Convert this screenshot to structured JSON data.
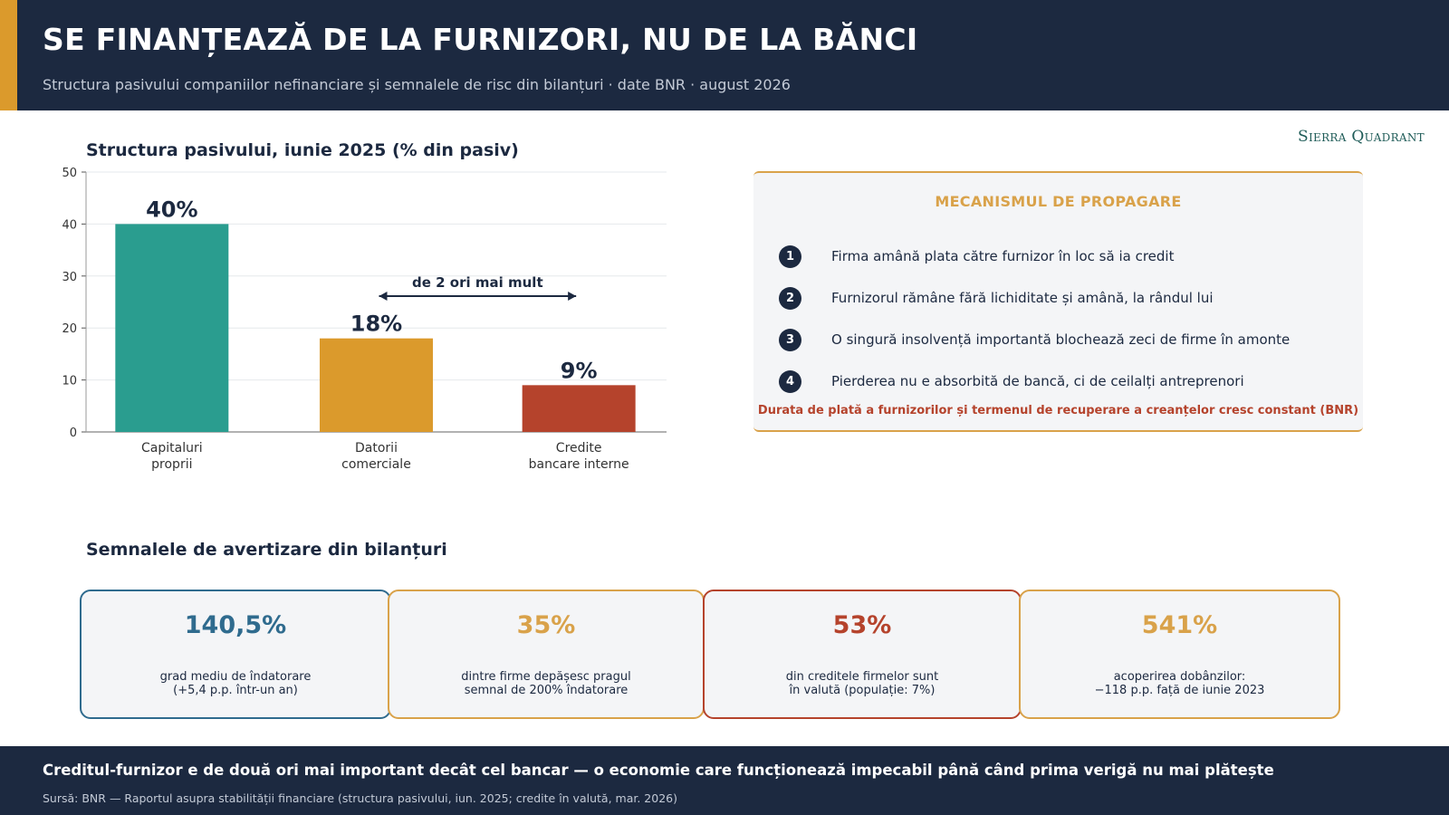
{
  "header": {
    "title": "SE FINANȚEAZĂ DE LA FURNIZORI, NU DE LA BĂNCI",
    "subtitle": "Structura pasivului companiilor nefinanciare și semnalele de risc din bilanțuri · date BNR · august 2026"
  },
  "brand": "Sierra Quadrant",
  "chart_section": {
    "title": "Structura pasivului, iunie 2025 (% din pasiv)"
  },
  "chart_data": {
    "type": "bar",
    "title": "Structura pasivului, iunie 2025 (% din pasiv)",
    "categories": [
      [
        "Capitaluri",
        "proprii"
      ],
      [
        "Datorii",
        "comerciale"
      ],
      [
        "Credite",
        "bancare interne"
      ]
    ],
    "values": [
      40,
      18,
      9
    ],
    "data_labels": [
      "40%",
      "18%",
      "9%"
    ],
    "colors": [
      "#2a9d8f",
      "#db9a2c",
      "#b5432c"
    ],
    "ylim": [
      0,
      50
    ],
    "yticks": [
      0,
      10,
      20,
      30,
      40,
      50
    ],
    "grid": true,
    "annotation": {
      "text": "de 2 ori mai mult",
      "from_category": 1,
      "to_category": 2
    }
  },
  "mechanism": {
    "title": "MECANISMUL DE PROPAGARE",
    "steps": [
      {
        "num": "1",
        "text": "Firma amână plata către furnizor în loc să ia credit"
      },
      {
        "num": "2",
        "text": "Furnizorul rămâne fără lichiditate și amână, la rândul lui"
      },
      {
        "num": "3",
        "text": "O singură insolvență importantă blochează zeci de firme în amonte"
      },
      {
        "num": "4",
        "text": "Pierderea nu e absorbită de bancă, ci de ceilalți antreprenori"
      }
    ],
    "note": "Durata de plată a furnizorilor și termenul de recuperare a creanțelor cresc constant (BNR)"
  },
  "warnings": {
    "title": "Semnalele de avertizare din bilanțuri",
    "cards": [
      {
        "value": "140,5%",
        "desc": "grad mediu de îndatorare\n(+5,4 p.p. într-un an)",
        "color": "#2f6b8e"
      },
      {
        "value": "35%",
        "desc": "dintre firme depășesc pragul\nsemnal de 200% îndatorare",
        "color": "#d9a24a"
      },
      {
        "value": "53%",
        "desc": "din creditele firmelor sunt\nîn valută (populație: 7%)",
        "color": "#b5432c"
      },
      {
        "value": "541%",
        "desc": "acoperirea dobânzilor:\n−118 p.p. față de iunie 2023",
        "color": "#d9a24a"
      }
    ]
  },
  "footer": {
    "headline": "Creditul-furnizor e de două ori mai important decât cel bancar — o economie care funcționează impecabil până când prima verigă nu mai plătește",
    "source": "Sursă: BNR — Raportul asupra stabilității financiare (structura pasivului, iun. 2025; credite în valută, mar. 2026)"
  }
}
